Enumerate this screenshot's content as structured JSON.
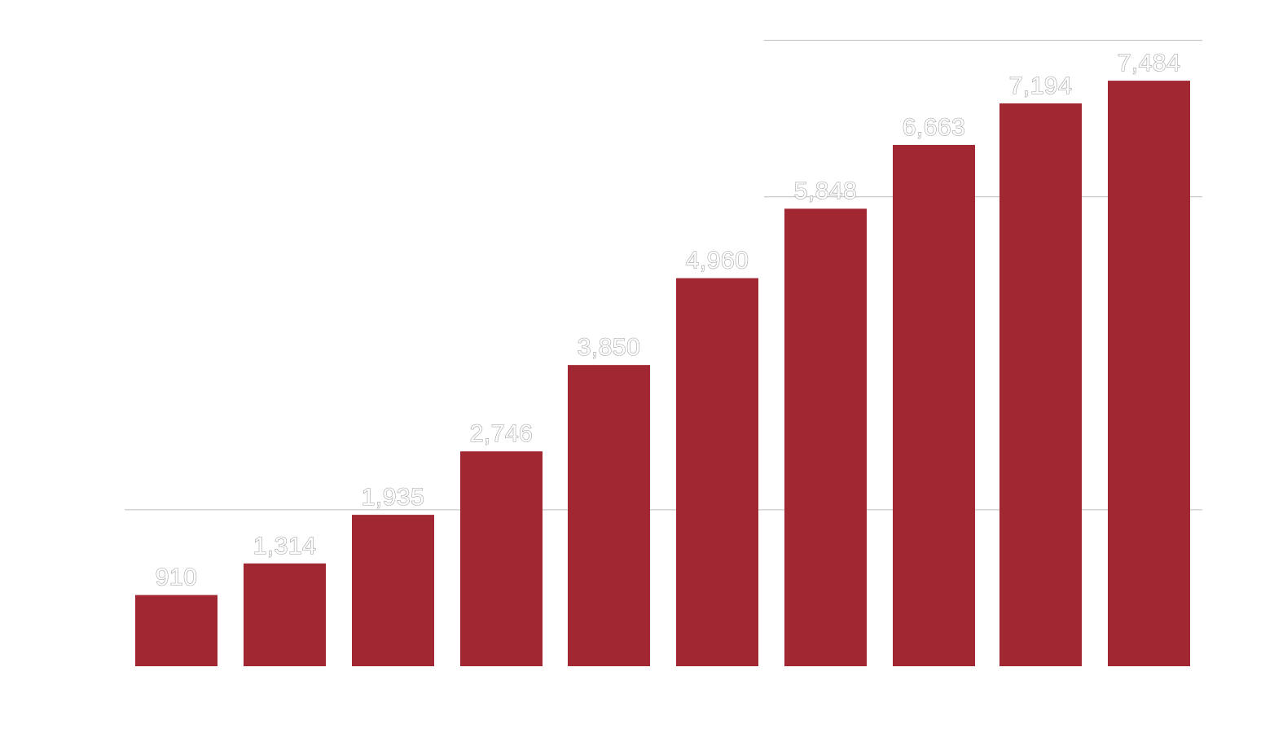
{
  "chart_data": {
    "type": "bar",
    "categories": [],
    "values": [
      910,
      1314,
      1935,
      2746,
      3850,
      4960,
      5848,
      6663,
      7194,
      7484
    ],
    "labels": [
      "910",
      "1,314",
      "1,935",
      "2,746",
      "3,850",
      "4,960",
      "5,848",
      "6,663",
      "7,194",
      "7,484"
    ],
    "ylim": [
      0,
      8000
    ],
    "gridlines": [
      2000,
      6000,
      8000
    ],
    "grid": true,
    "colors": {
      "bar": "#a12733",
      "grid": "#c8c8c8",
      "label_fill": "#ffffff",
      "label_outline": "#9a9a9a"
    }
  }
}
